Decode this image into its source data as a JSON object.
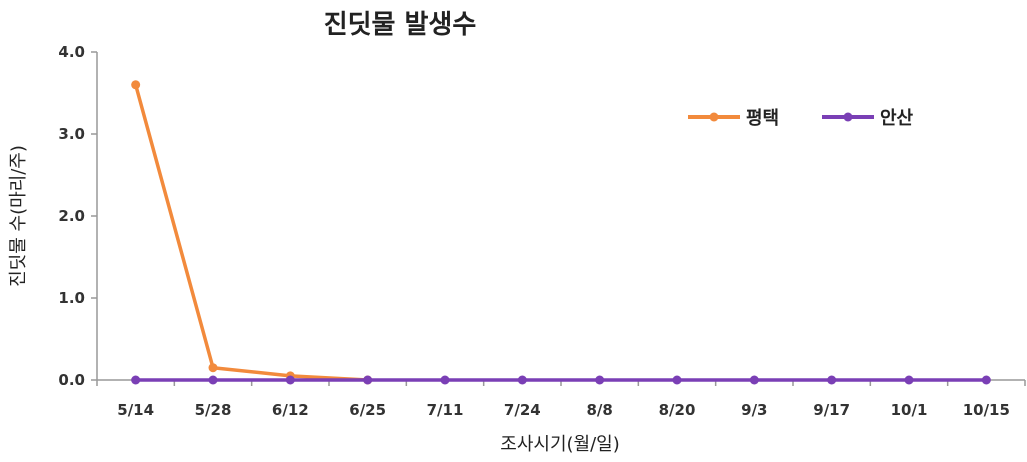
{
  "chart_data": {
    "type": "line",
    "title": "진딧물 발생수",
    "xlabel": "조사시기(월/일)",
    "ylabel": "진딧물 수(마리/주)",
    "categories": [
      "5/14",
      "5/28",
      "6/12",
      "6/25",
      "7/11",
      "7/24",
      "8/8",
      "8/20",
      "9/3",
      "9/17",
      "10/1",
      "10/15"
    ],
    "y_ticks": [
      "0.0",
      "1.0",
      "2.0",
      "3.0",
      "4.0"
    ],
    "ylim": [
      0,
      4
    ],
    "grid": false,
    "legend_position": "top-right",
    "series": [
      {
        "name": "평택",
        "color": "#f28a3c",
        "values": [
          3.6,
          0.15,
          0.05,
          0,
          null,
          null,
          null,
          null,
          null,
          null,
          null,
          null
        ]
      },
      {
        "name": "안산",
        "color": "#7a3fb5",
        "values": [
          0,
          0,
          0,
          0,
          0,
          0,
          0,
          0,
          0,
          0,
          0,
          0
        ]
      }
    ]
  }
}
